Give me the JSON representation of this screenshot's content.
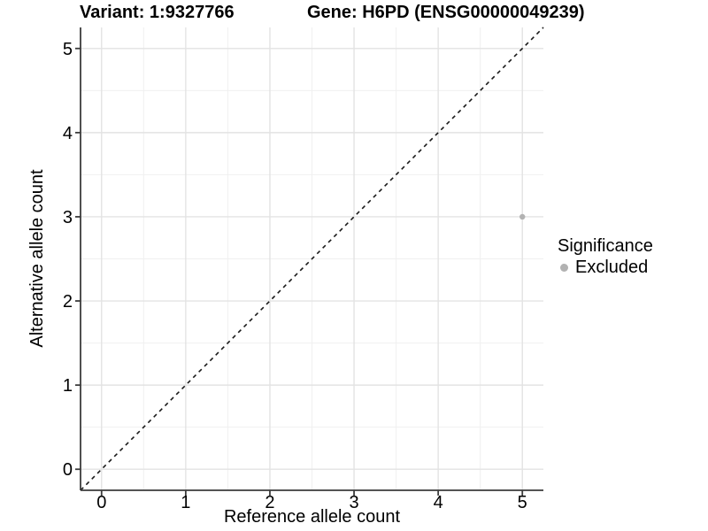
{
  "title": {
    "variant_label": "Variant: 1:9327766",
    "gene_label": "Gene: H6PD (ENSG00000049239)"
  },
  "axes": {
    "x_title": "Reference allele count",
    "y_title": "Alternative allele count"
  },
  "legend": {
    "title": "Significance",
    "entries": [
      {
        "label": "Excluded",
        "color": "#b2b2b2"
      }
    ]
  },
  "colors": {
    "background": "#ffffff",
    "text": "#000000",
    "axis_line": "#3c3c3c",
    "tick_mark": "#3c3c3c",
    "grid_major": "#e3e3e3",
    "grid_minor": "#f0f0f0",
    "identity_line": "#1a1a1a",
    "excluded_point": "#b2b2b2"
  },
  "chart_data": {
    "type": "scatter",
    "title": "Variant: 1:9327766   Gene: H6PD (ENSG00000049239)",
    "xlabel": "Reference allele count",
    "ylabel": "Alternative allele count",
    "xlim": [
      -0.25,
      5.25
    ],
    "ylim": [
      -0.25,
      5.25
    ],
    "x_ticks": [
      0,
      1,
      2,
      3,
      4,
      5
    ],
    "y_ticks": [
      0,
      1,
      2,
      3,
      4,
      5
    ],
    "x_minor_ticks": [
      0.5,
      1.5,
      2.5,
      3.5,
      4.5
    ],
    "y_minor_ticks": [
      0.5,
      1.5,
      2.5,
      3.5,
      4.5
    ],
    "grid": true,
    "legend_position": "right",
    "legend_title": "Significance",
    "series": [
      {
        "name": "Excluded",
        "color": "#b2b2b2",
        "points": [
          {
            "x": 5,
            "y": 3
          }
        ]
      }
    ],
    "reference_line": {
      "kind": "identity",
      "slope": 1,
      "intercept": 0,
      "style": "dashed",
      "color": "#1a1a1a"
    }
  }
}
